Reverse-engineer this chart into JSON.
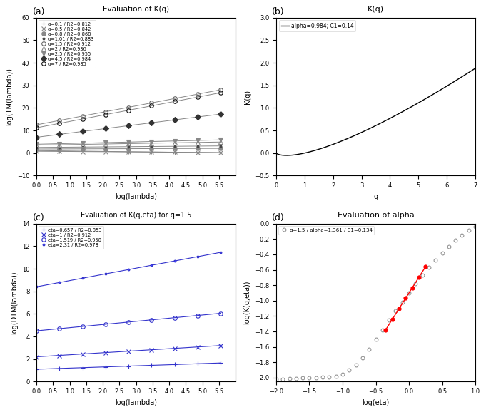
{
  "panel_a": {
    "title": "Evaluation of K(q)",
    "xlabel": "log(lambda)",
    "ylabel": "log(TM(lambda))",
    "xlim": [
      0,
      6
    ],
    "ylim": [
      -10,
      60
    ],
    "xticks": [
      0,
      0.5,
      1,
      1.5,
      2,
      2.5,
      3,
      3.5,
      4,
      4.5,
      5,
      5.5
    ],
    "yticks": [
      -10,
      0,
      10,
      20,
      30,
      40,
      50,
      60
    ],
    "series": [
      {
        "q": "0.1",
        "R2": "0.812",
        "marker": "+",
        "slope": -0.18,
        "intercept": 1.1,
        "color": "#888888",
        "mfc": "#888888"
      },
      {
        "q": "0.5",
        "R2": "0.842",
        "marker": "x",
        "slope": -0.1,
        "intercept": 0.8,
        "color": "#888888",
        "mfc": "#888888"
      },
      {
        "q": "0.8",
        "R2": "0.868",
        "marker": "o",
        "slope": 0.05,
        "intercept": 1.8,
        "color": "#888888",
        "mfc": "#888888"
      },
      {
        "q": "1.01",
        "R2": "0.883",
        "marker": ".",
        "slope": 0.12,
        "intercept": 2.5,
        "color": "#444444",
        "mfc": "#444444"
      },
      {
        "q": "1.5",
        "R2": "0.912",
        "marker": "o",
        "slope": 2.8,
        "intercept": 12.5,
        "color": "#666666",
        "mfc": "none"
      },
      {
        "q": "2",
        "R2": "0.936",
        "marker": "^",
        "slope": 0.25,
        "intercept": 3.5,
        "color": "#888888",
        "mfc": "none"
      },
      {
        "q": "2.5",
        "R2": "0.955",
        "marker": "v",
        "slope": 0.35,
        "intercept": 3.9,
        "color": "#888888",
        "mfc": "#888888"
      },
      {
        "q": "4.5",
        "R2": "0.984",
        "marker": "D",
        "slope": 1.85,
        "intercept": 7.0,
        "color": "#333333",
        "mfc": "#333333"
      },
      {
        "q": "7",
        "R2": "0.985",
        "marker": "o",
        "slope": 2.8,
        "intercept": 11.2,
        "color": "#111111",
        "mfc": "none"
      }
    ]
  },
  "panel_b": {
    "title": "K(q)",
    "xlabel": "q",
    "ylabel": "K(q)",
    "xlim": [
      0,
      7
    ],
    "ylim": [
      -0.5,
      3.0
    ],
    "xticks": [
      0,
      1,
      2,
      3,
      4,
      5,
      6,
      7
    ],
    "yticks": [
      -0.5,
      0,
      0.5,
      1.0,
      1.5,
      2.0,
      2.5,
      3.0
    ],
    "legend": "alpha=0.984; C1=0.14",
    "alpha": 0.984,
    "C1": 0.14
  },
  "panel_c": {
    "title": "Evaluation of K(q,eta) for q=1.5",
    "xlabel": "log(lambda)",
    "ylabel": "log(DTM(lambda))",
    "xlim": [
      0,
      6
    ],
    "ylim": [
      0,
      14
    ],
    "xticks": [
      0,
      0.5,
      1,
      1.5,
      2,
      2.5,
      3,
      3.5,
      4,
      4.5,
      5,
      5.5
    ],
    "yticks": [
      0,
      2,
      4,
      6,
      8,
      10,
      12,
      14
    ],
    "series": [
      {
        "eta": "0.657",
        "R2": "0.853",
        "marker": "+",
        "slope": 0.1,
        "intercept": 1.1,
        "mfc": "#4444ff"
      },
      {
        "eta": "1",
        "R2": "0.912",
        "marker": "x",
        "slope": 0.18,
        "intercept": 2.2,
        "mfc": "#4444ff"
      },
      {
        "eta": "1.519",
        "R2": "0.958",
        "marker": "o",
        "slope": 0.28,
        "intercept": 4.5,
        "mfc": "none"
      },
      {
        "eta": "2.31",
        "R2": "0.978",
        "marker": ".",
        "slope": 0.55,
        "intercept": 8.4,
        "mfc": "#4444ff"
      }
    ]
  },
  "panel_d": {
    "title": "Evaluation of alpha",
    "xlabel": "log(eta)",
    "ylabel": "log(K(q,eta))",
    "xlim": [
      -2,
      1
    ],
    "ylim": [
      -2.05,
      0.0
    ],
    "xticks": [
      -2,
      -1.5,
      -1,
      -0.5,
      0,
      0.5,
      1
    ],
    "yticks": [
      -2.0,
      -1.8,
      -1.6,
      -1.4,
      -1.2,
      -1.0,
      -0.8,
      -0.6,
      -0.4,
      -0.2,
      0.0
    ],
    "legend": "q=1.5 / alpha=1.361 / C1=0.134",
    "fit_x_start": -0.35,
    "fit_x_end": 0.25
  }
}
